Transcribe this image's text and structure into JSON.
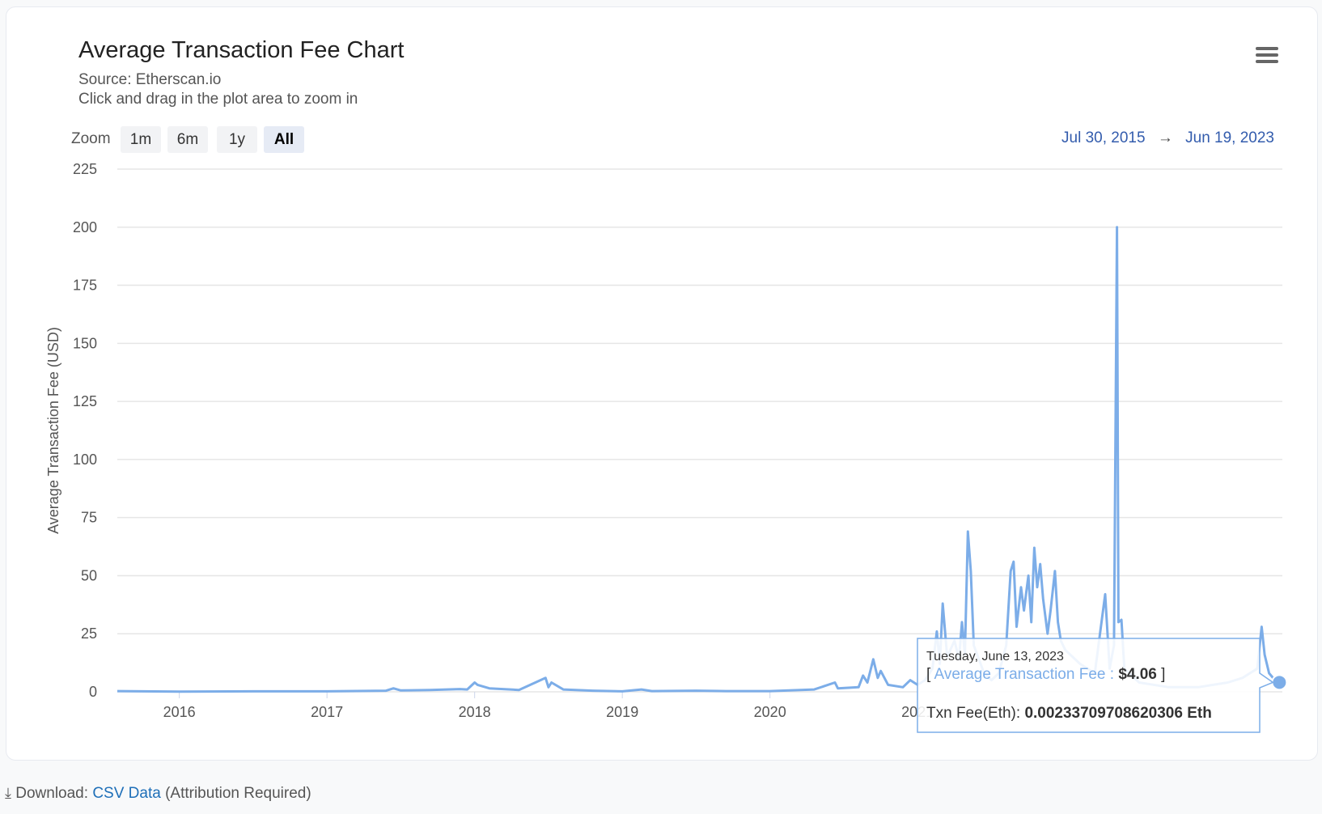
{
  "chart_data": {
    "type": "line",
    "title": "Average Transaction Fee Chart",
    "subtitle": [
      "Source: Etherscan.io",
      "Click and drag in the plot area to zoom in"
    ],
    "y_label": "Average Transaction Fee (USD)",
    "color": "#7cade8",
    "x": [
      2015.58,
      2016,
      2016.5,
      2017,
      2017.4,
      2017.45,
      2017.5,
      2017.7,
      2017.9,
      2017.95,
      2018.0,
      2018.02,
      2018.1,
      2018.3,
      2018.48,
      2018.5,
      2018.52,
      2018.6,
      2018.8,
      2019,
      2019.13,
      2019.2,
      2019.5,
      2019.7,
      2020,
      2020.3,
      2020.44,
      2020.46,
      2020.6,
      2020.63,
      2020.66,
      2020.7,
      2020.73,
      2020.75,
      2020.8,
      2020.9,
      2020.95,
      2021.0,
      2021.05,
      2021.1,
      2021.13,
      2021.15,
      2021.17,
      2021.2,
      2021.25,
      2021.28,
      2021.3,
      2021.32,
      2021.34,
      2021.36,
      2021.38,
      2021.45,
      2021.5,
      2021.55,
      2021.6,
      2021.63,
      2021.65,
      2021.67,
      2021.7,
      2021.72,
      2021.75,
      2021.77,
      2021.79,
      2021.81,
      2021.83,
      2021.85,
      2021.88,
      2021.9,
      2021.93,
      2021.95,
      2021.97,
      2022.0,
      2022.1,
      2022.2,
      2022.27,
      2022.3,
      2022.33,
      2022.35,
      2022.36,
      2022.38,
      2022.4,
      2022.5,
      2022.7,
      2022.9,
      2023.0,
      2023.1,
      2023.2,
      2023.3,
      2023.33,
      2023.35,
      2023.38,
      2023.42,
      2023.45,
      2023.47
    ],
    "values": [
      0.3,
      0.1,
      0.2,
      0.2,
      0.5,
      1.5,
      0.6,
      0.8,
      1.2,
      1.0,
      4,
      3,
      1.5,
      0.8,
      6,
      2,
      4,
      1,
      0.5,
      0.2,
      1,
      0.3,
      0.5,
      0.3,
      0.3,
      1,
      4,
      1.5,
      2,
      7,
      4,
      14,
      6,
      9,
      3,
      2,
      5,
      3,
      5,
      10,
      26,
      12,
      38,
      15,
      22,
      14,
      30,
      16,
      69,
      52,
      20,
      8,
      5,
      8,
      20,
      52,
      56,
      28,
      45,
      35,
      50,
      30,
      62,
      45,
      55,
      40,
      25,
      35,
      52,
      30,
      22,
      18,
      12,
      8,
      42,
      10,
      20,
      200,
      30,
      31,
      10,
      4,
      2,
      2,
      3,
      4,
      6,
      10,
      28,
      16,
      8,
      5,
      4.06,
      3
    ],
    "xlim": [
      2015.58,
      2023.47
    ],
    "ylim": [
      0,
      225
    ],
    "xticks": [
      2016,
      2017,
      2018,
      2019,
      2020,
      2021
    ],
    "yticks": [
      0,
      25,
      50,
      75,
      100,
      125,
      150,
      175,
      200,
      225
    ],
    "grid": true,
    "tooltip": {
      "date": "Tuesday, June 13, 2023",
      "prefix": "[",
      "name": "Average Transaction Fee",
      "separator": ":",
      "x": 2023.45,
      "value": 4.06,
      "value_label": "$4.06",
      "suffix": "]",
      "extra_label": "Txn Fee(Eth):",
      "extra_value": "0.00233709708620306 Eth"
    }
  },
  "zoom": {
    "label": "Zoom",
    "buttons": [
      "1m",
      "6m",
      "1y",
      "All"
    ]
  },
  "range": {
    "from": "Jul 30, 2015",
    "arrow": "→",
    "to": "Jun 19, 2023"
  },
  "footer": {
    "label": "Download:",
    "link": "CSV Data",
    "note": "(Attribution Required)"
  }
}
